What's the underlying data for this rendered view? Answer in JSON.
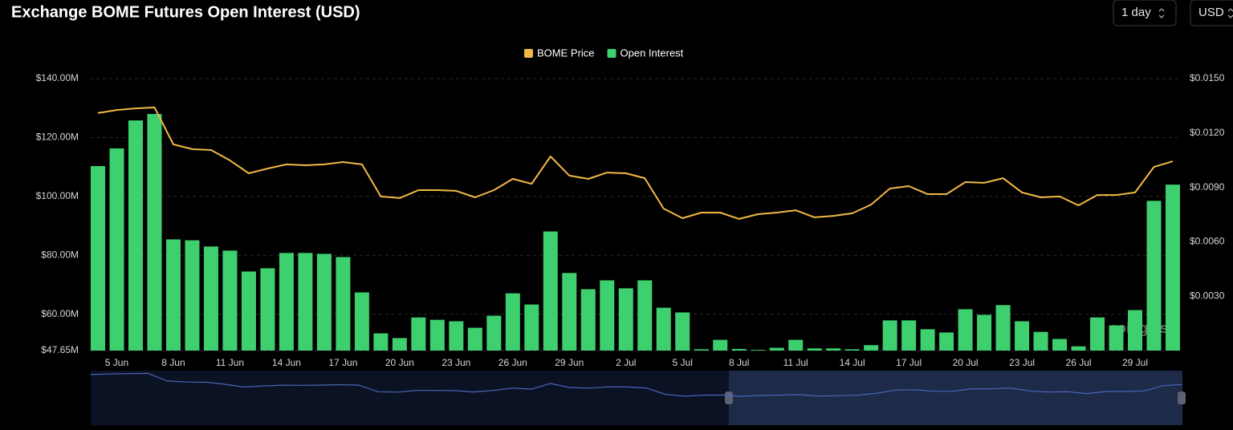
{
  "controls": {
    "interval": "1 day",
    "currency": "USD"
  },
  "chart_data": {
    "type": "bar",
    "title": "Exchange BOME Futures Open Interest (USD)",
    "watermark": "coinglass",
    "categories": [
      null,
      "5 Jun",
      null,
      null,
      "8 Jun",
      null,
      null,
      "11 Jun",
      null,
      null,
      "14 Jun",
      null,
      null,
      "17 Jun",
      null,
      null,
      "20 Jun",
      null,
      null,
      "23 Jun",
      null,
      null,
      "26 Jun",
      null,
      null,
      "29 Jun",
      null,
      null,
      "2 Jul",
      null,
      null,
      "5 Jul",
      null,
      null,
      "8 Jul",
      null,
      null,
      "11 Jul",
      null,
      null,
      "14 Jul",
      null,
      null,
      "17 Jul",
      null,
      null,
      "20 Jul",
      null,
      null,
      "23 Jul",
      null,
      null,
      "26 Jul",
      null,
      null,
      "29 Jul",
      null,
      null
    ],
    "series": [
      {
        "name": "BOME Price",
        "type": "line",
        "axis": "y2",
        "color": "#f2b844",
        "values": [
          0.0131,
          0.01327,
          0.01336,
          0.01341,
          0.01137,
          0.01111,
          0.01106,
          0.01049,
          0.00978,
          0.01004,
          0.01027,
          0.01022,
          0.01027,
          0.0104,
          0.01027,
          0.0085,
          0.00841,
          0.00885,
          0.00885,
          0.00881,
          0.00845,
          0.00885,
          0.00947,
          0.0092,
          0.01071,
          0.00965,
          0.00947,
          0.00982,
          0.00978,
          0.00951,
          0.00783,
          0.0073,
          0.00761,
          0.00761,
          0.00726,
          0.00752,
          0.00761,
          0.00774,
          0.00735,
          0.00743,
          0.00757,
          0.00805,
          0.00894,
          0.00907,
          0.00863,
          0.00863,
          0.00929,
          0.00925,
          0.00951,
          0.00872,
          0.00845,
          0.0085,
          0.00801,
          0.00858,
          0.00858,
          0.00872,
          0.01013,
          0.01044
        ]
      },
      {
        "name": "Open Interest",
        "type": "bar",
        "color": "#3ecf6e",
        "values": [
          110.3,
          116.3,
          125.8,
          128,
          85.4,
          85.1,
          83,
          81.6,
          74.5,
          75.6,
          80.8,
          80.8,
          80.5,
          79.4,
          67.4,
          53.5,
          51.9,
          58.9,
          58.1,
          57.6,
          55.4,
          59.5,
          67.1,
          63.3,
          88.1,
          74,
          68.5,
          71.5,
          68.8,
          71.5,
          62.2,
          60.6,
          48.1,
          51.3,
          48.2,
          47.9,
          48.6,
          51.3,
          48.4,
          48.4,
          48.1,
          49.5,
          57.9,
          57.9,
          54.9,
          53.8,
          61.7,
          59.8,
          63.1,
          57.6,
          54,
          51.6,
          49.1,
          58.9,
          56.2,
          61.4,
          98.5,
          104
        ]
      }
    ],
    "ylim": [
      47.65,
      140
    ],
    "yticks": [
      {
        "value": 47.65,
        "label": "$47.65M"
      },
      {
        "value": 60,
        "label": "$60.00M"
      },
      {
        "value": 80,
        "label": "$80.00M"
      },
      {
        "value": 100,
        "label": "$100.00M"
      },
      {
        "value": 120,
        "label": "$120.00M"
      },
      {
        "value": 140,
        "label": "$140.00M"
      }
    ],
    "y2lim": [
      0,
      0.015
    ],
    "y2ticks": [
      {
        "value": 0.003,
        "label": "$0.0030"
      },
      {
        "value": 0.006,
        "label": "$0.0060"
      },
      {
        "value": 0.009,
        "label": "$0.0090"
      },
      {
        "value": 0.012,
        "label": "$0.0120"
      },
      {
        "value": 0.015,
        "label": "$0.0150"
      }
    ],
    "grid": true
  }
}
